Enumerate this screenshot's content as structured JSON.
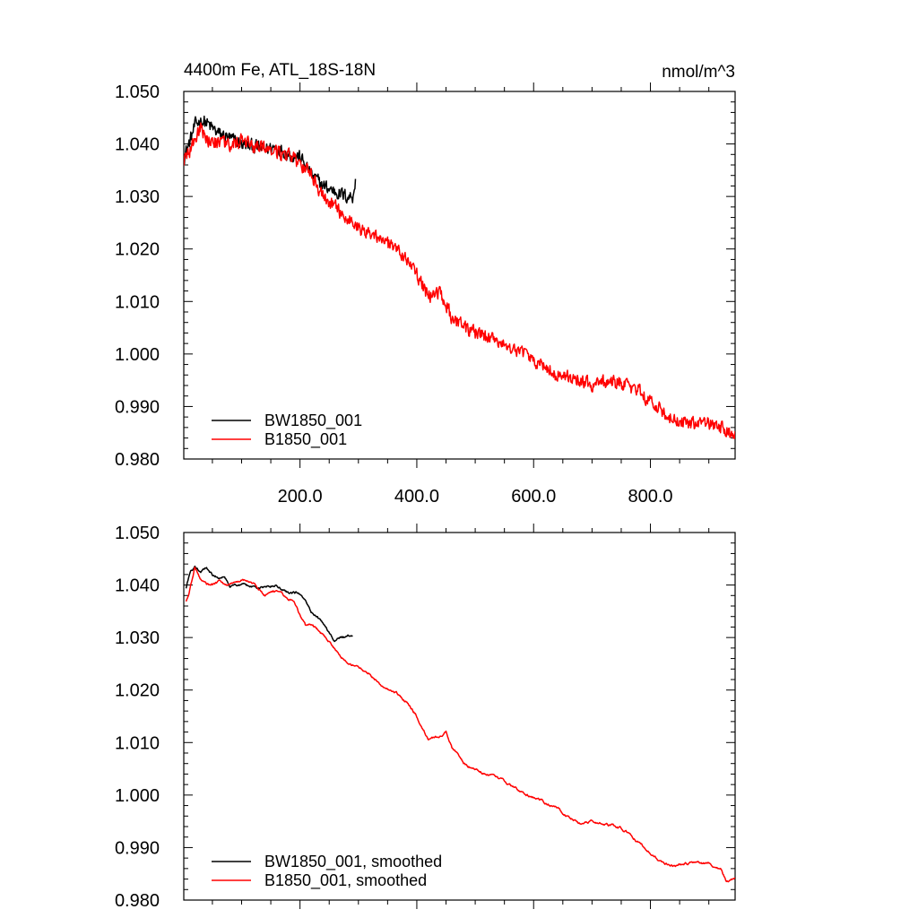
{
  "figure": {
    "title_left": "4400m Fe, ATL_18S-18N",
    "title_right": "nmol/m^3"
  },
  "colors": {
    "BW1850_001": "#000000",
    "B1850_001": "#ff0000",
    "axis": "#000000"
  },
  "chart_data": [
    {
      "type": "line",
      "xlim": [
        1,
        945
      ],
      "ylim": [
        0.98,
        1.05
      ],
      "yticks": [
        0.98,
        0.99,
        1.0,
        1.01,
        1.02,
        1.03,
        1.04,
        1.05
      ],
      "ytick_labels": [
        "0.980",
        "0.990",
        "1.000",
        "1.010",
        "1.020",
        "1.030",
        "1.040",
        "1.050"
      ],
      "xticks": [
        200,
        400,
        600,
        800
      ],
      "xtick_labels": [
        "200.0",
        "400.0",
        "600.0",
        "800.0"
      ],
      "grid": false,
      "legend_position": "bottom-left",
      "series": [
        {
          "name": "BW1850_001",
          "color": "#000000",
          "noise": 0.0012,
          "x": [
            1,
            10,
            20,
            30,
            40,
            50,
            60,
            80,
            100,
            120,
            140,
            160,
            180,
            200,
            220,
            240,
            260,
            280,
            290,
            295
          ],
          "y": [
            1.0375,
            1.04,
            1.0435,
            1.0445,
            1.044,
            1.043,
            1.042,
            1.041,
            1.04,
            1.0395,
            1.039,
            1.0395,
            1.038,
            1.0375,
            1.034,
            1.032,
            1.031,
            1.03,
            1.03,
            1.033
          ]
        },
        {
          "name": "B1850_001",
          "color": "#ff0000",
          "noise": 0.0012,
          "x": [
            1,
            10,
            20,
            30,
            40,
            60,
            80,
            100,
            120,
            140,
            160,
            180,
            200,
            220,
            240,
            260,
            280,
            300,
            320,
            340,
            360,
            380,
            400,
            420,
            440,
            460,
            480,
            500,
            520,
            540,
            560,
            580,
            600,
            620,
            640,
            660,
            680,
            700,
            720,
            740,
            760,
            780,
            800,
            820,
            840,
            860,
            880,
            900,
            920,
            945
          ],
          "y": [
            1.037,
            1.038,
            1.041,
            1.043,
            1.041,
            1.04,
            1.04,
            1.0405,
            1.0395,
            1.039,
            1.0385,
            1.038,
            1.036,
            1.034,
            1.03,
            1.028,
            1.026,
            1.024,
            1.023,
            1.022,
            1.02,
            1.0185,
            1.015,
            1.011,
            1.012,
            1.007,
            1.005,
            1.004,
            1.003,
            1.0025,
            1.001,
            1.0,
            0.999,
            0.9975,
            0.996,
            0.9955,
            0.995,
            0.994,
            0.9945,
            0.9945,
            0.994,
            0.993,
            0.991,
            0.989,
            0.9875,
            0.987,
            0.9865,
            0.987,
            0.986,
            0.9845
          ]
        }
      ]
    },
    {
      "type": "line",
      "xlim": [
        1,
        945
      ],
      "ylim": [
        0.98,
        1.05
      ],
      "yticks": [
        0.98,
        0.99,
        1.0,
        1.01,
        1.02,
        1.03,
        1.04,
        1.05
      ],
      "ytick_labels": [
        "0.980",
        "0.990",
        "1.000",
        "1.010",
        "1.020",
        "1.030",
        "1.040",
        "1.050"
      ],
      "xticks": [
        200,
        400,
        600,
        800
      ],
      "xtick_labels": [],
      "grid": false,
      "legend_position": "bottom-left",
      "series": [
        {
          "name": "BW1850_001, smoothed",
          "color": "#000000",
          "noise": 0.0004,
          "x": [
            5,
            12,
            20,
            30,
            40,
            50,
            60,
            70,
            80,
            90,
            100,
            120,
            140,
            160,
            170,
            180,
            200,
            210,
            220,
            230,
            240,
            250,
            260,
            270,
            280,
            290
          ],
          "y": [
            1.0395,
            1.0425,
            1.0435,
            1.0425,
            1.0435,
            1.042,
            1.0415,
            1.042,
            1.04,
            1.04,
            1.04,
            1.0395,
            1.0395,
            1.04,
            1.039,
            1.0385,
            1.0385,
            1.037,
            1.035,
            1.034,
            1.0325,
            1.031,
            1.0295,
            1.03,
            1.03,
            1.0305
          ]
        },
        {
          "name": "B1850_001, smoothed",
          "color": "#ff0000",
          "noise": 0.0004,
          "x": [
            5,
            10,
            20,
            30,
            40,
            50,
            60,
            80,
            100,
            120,
            140,
            160,
            180,
            190,
            200,
            210,
            220,
            240,
            260,
            270,
            280,
            300,
            320,
            340,
            360,
            380,
            400,
            410,
            420,
            440,
            450,
            460,
            480,
            500,
            520,
            540,
            560,
            580,
            600,
            620,
            640,
            660,
            680,
            700,
            720,
            740,
            760,
            780,
            800,
            820,
            840,
            860,
            880,
            900,
            920,
            930,
            945
          ],
          "y": [
            1.037,
            1.0385,
            1.0435,
            1.041,
            1.04,
            1.04,
            1.0405,
            1.04,
            1.041,
            1.0405,
            1.038,
            1.039,
            1.0375,
            1.037,
            1.034,
            1.032,
            1.0325,
            1.0305,
            1.028,
            1.026,
            1.0255,
            1.024,
            1.023,
            1.021,
            1.02,
            1.018,
            1.015,
            1.0125,
            1.0105,
            1.011,
            1.012,
            1.009,
            1.006,
            1.005,
            1.004,
            1.003,
            1.002,
            1.0005,
            0.9995,
            0.9985,
            0.9975,
            0.996,
            0.9945,
            0.995,
            0.9945,
            0.994,
            0.993,
            0.991,
            0.989,
            0.987,
            0.9865,
            0.987,
            0.987,
            0.987,
            0.986,
            0.9835,
            0.984
          ]
        }
      ]
    }
  ]
}
